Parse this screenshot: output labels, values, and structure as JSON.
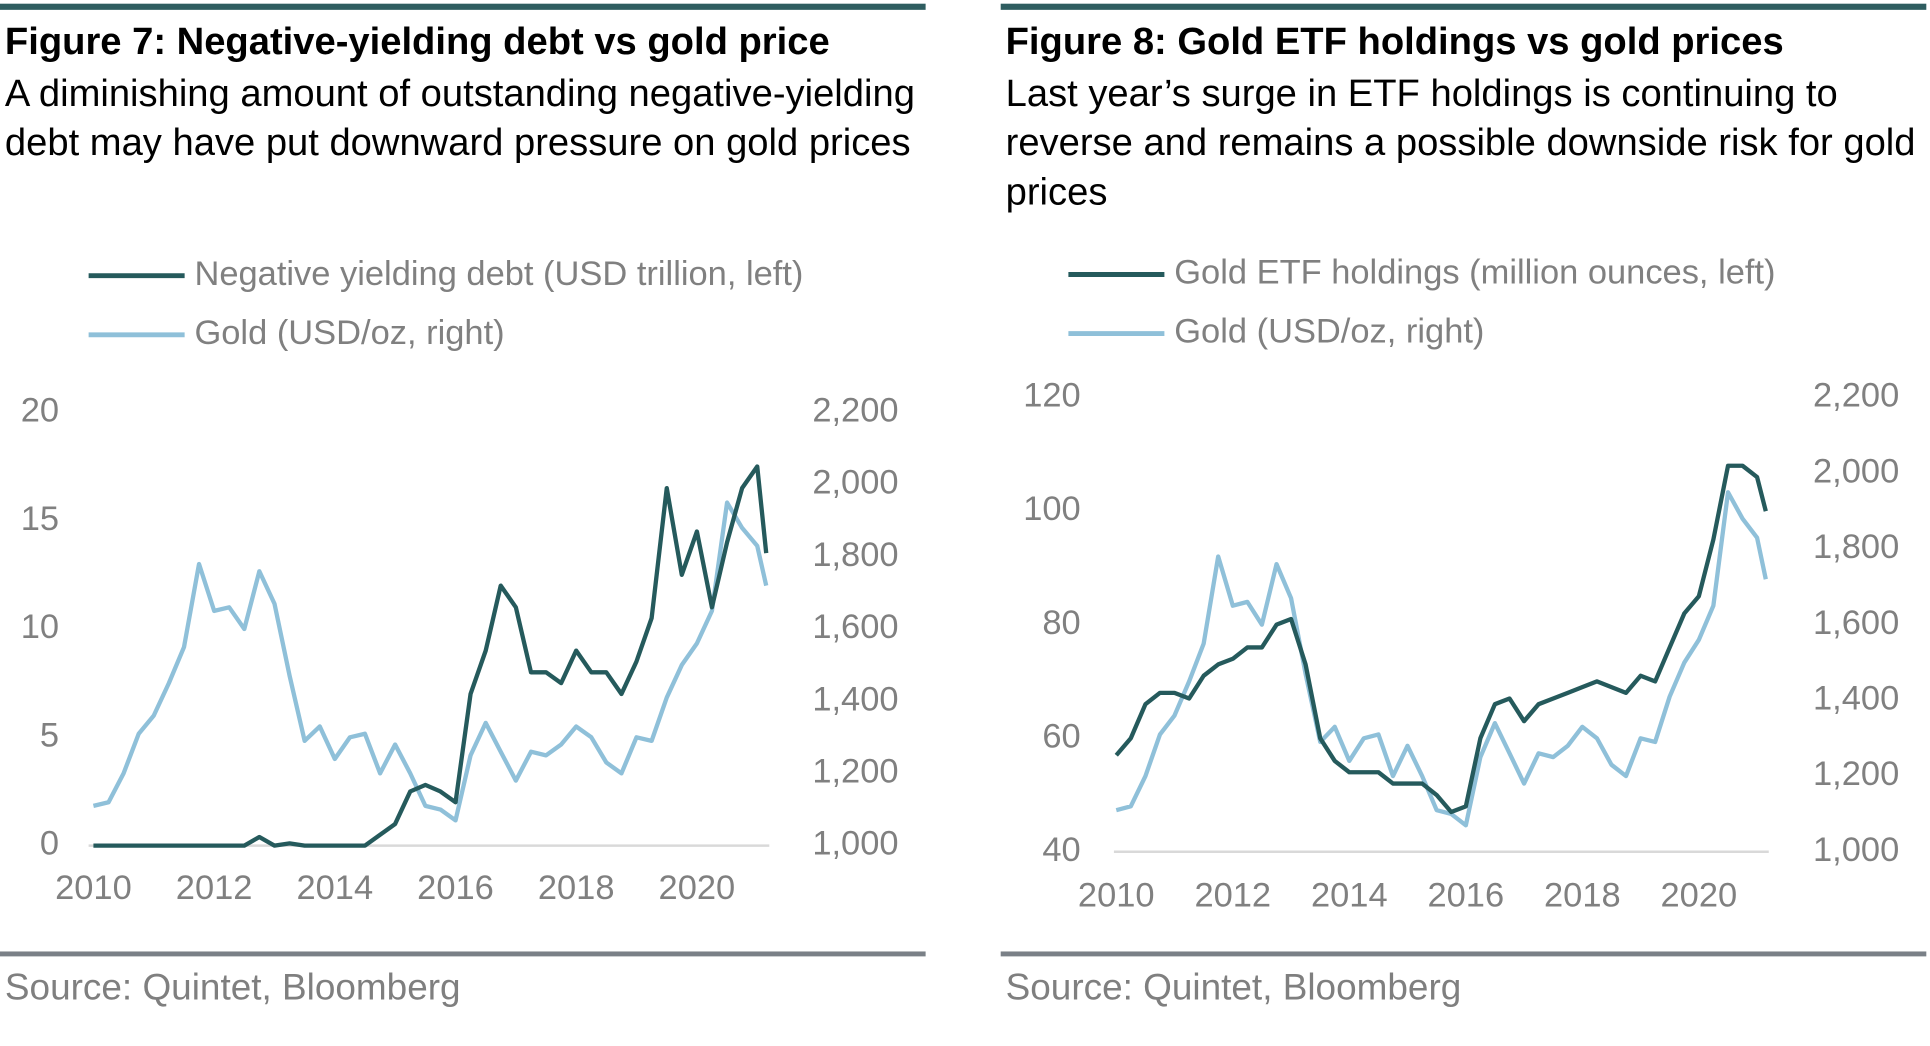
{
  "chart_data": [
    {
      "type": "line",
      "title": "Figure 7: Negative-yielding debt vs gold price",
      "subtitle": "A diminishing amount of outstanding negative-yielding debt may have put downward pressure on gold prices",
      "source": "Source: Quintet, Bloomberg",
      "x": [
        2010.0,
        2010.25,
        2010.5,
        2010.75,
        2011.0,
        2011.25,
        2011.5,
        2011.75,
        2012.0,
        2012.25,
        2012.5,
        2012.75,
        2013.0,
        2013.25,
        2013.5,
        2013.75,
        2014.0,
        2014.25,
        2014.5,
        2014.75,
        2015.0,
        2015.25,
        2015.5,
        2015.75,
        2016.0,
        2016.25,
        2016.5,
        2016.75,
        2017.0,
        2017.25,
        2017.5,
        2017.75,
        2018.0,
        2018.25,
        2018.5,
        2018.75,
        2019.0,
        2019.25,
        2019.5,
        2019.75,
        2020.0,
        2020.25,
        2020.5,
        2020.75,
        2021.0,
        2021.15
      ],
      "series": [
        {
          "name": "Negative yielding debt (USD trillion, left)",
          "color": "#255a5c",
          "axis": "y",
          "values": [
            0,
            0,
            0,
            0,
            0,
            0,
            0,
            0,
            0,
            0,
            0,
            0.4,
            0,
            0.1,
            0,
            0,
            0,
            0,
            0,
            0.5,
            1.0,
            2.5,
            2.8,
            2.5,
            2.0,
            7.0,
            9.0,
            12.0,
            11.0,
            8.0,
            8.0,
            7.5,
            9.0,
            8.0,
            8.0,
            7.0,
            8.5,
            10.5,
            16.5,
            12.5,
            14.5,
            11.0,
            14.0,
            16.5,
            17.5,
            13.5
          ]
        },
        {
          "name": "Gold (USD/oz, right)",
          "color": "#8fc0d9",
          "axis": "y2",
          "values": [
            1110,
            1120,
            1200,
            1310,
            1360,
            1450,
            1550,
            1780,
            1650,
            1660,
            1600,
            1760,
            1670,
            1470,
            1290,
            1330,
            1240,
            1300,
            1310,
            1200,
            1280,
            1200,
            1110,
            1100,
            1070,
            1250,
            1340,
            1260,
            1180,
            1260,
            1250,
            1280,
            1330,
            1300,
            1230,
            1200,
            1300,
            1290,
            1410,
            1500,
            1560,
            1650,
            1950,
            1880,
            1830,
            1720
          ]
        }
      ],
      "xlim": [
        2009.92,
        2021.2
      ],
      "xticks": [
        2010,
        2012,
        2014,
        2016,
        2018,
        2020
      ],
      "ylim": [
        0,
        20
      ],
      "yticks": [
        0,
        5,
        10,
        15,
        20
      ],
      "y2lim": [
        1000,
        2200
      ],
      "y2ticks": [
        {
          "value": 1000,
          "label": "1,000"
        },
        {
          "value": 1200,
          "label": "1,200"
        },
        {
          "value": 1400,
          "label": "1,400"
        },
        {
          "value": 1600,
          "label": "1,600"
        },
        {
          "value": 1800,
          "label": "1,800"
        },
        {
          "value": 2000,
          "label": "2,000"
        },
        {
          "value": 2200,
          "label": "2,200"
        }
      ],
      "legend": "top-left"
    },
    {
      "type": "line",
      "title": "Figure 8: Gold ETF holdings vs gold prices",
      "subtitle": "Last year’s surge in ETF holdings is continuing to reverse and remains a possible downside risk for gold prices",
      "source": "Source: Quintet, Bloomberg",
      "x": [
        2010.0,
        2010.25,
        2010.5,
        2010.75,
        2011.0,
        2011.25,
        2011.5,
        2011.75,
        2012.0,
        2012.25,
        2012.5,
        2012.75,
        2013.0,
        2013.25,
        2013.5,
        2013.75,
        2014.0,
        2014.25,
        2014.5,
        2014.75,
        2015.0,
        2015.25,
        2015.5,
        2015.75,
        2016.0,
        2016.25,
        2016.5,
        2016.75,
        2017.0,
        2017.25,
        2017.5,
        2017.75,
        2018.0,
        2018.25,
        2018.5,
        2018.75,
        2019.0,
        2019.25,
        2019.5,
        2019.75,
        2020.0,
        2020.25,
        2020.5,
        2020.75,
        2021.0,
        2021.15
      ],
      "series": [
        {
          "name": "Gold ETF holdings (million ounces, left)",
          "color": "#255a5c",
          "axis": "y",
          "values": [
            57,
            60,
            66,
            68,
            68,
            67,
            71,
            73,
            74,
            76,
            76,
            80,
            81,
            73,
            60,
            56,
            54,
            54,
            54,
            52,
            52,
            52,
            50,
            47,
            48,
            60,
            66,
            67,
            63,
            66,
            67,
            68,
            69,
            70,
            69,
            68,
            71,
            70,
            76,
            82,
            85,
            95,
            108,
            108,
            106,
            100
          ]
        },
        {
          "name": "Gold (USD/oz, right)",
          "color": "#8fc0d9",
          "axis": "y2",
          "values": [
            1110,
            1120,
            1200,
            1310,
            1360,
            1450,
            1550,
            1780,
            1650,
            1660,
            1600,
            1760,
            1670,
            1470,
            1290,
            1330,
            1240,
            1300,
            1310,
            1200,
            1280,
            1200,
            1110,
            1100,
            1070,
            1250,
            1340,
            1260,
            1180,
            1260,
            1250,
            1280,
            1330,
            1300,
            1230,
            1200,
            1300,
            1290,
            1410,
            1500,
            1560,
            1650,
            1950,
            1880,
            1830,
            1720
          ]
        }
      ],
      "xlim": [
        2009.96,
        2021.2
      ],
      "xticks": [
        2010,
        2012,
        2014,
        2016,
        2018,
        2020
      ],
      "ylim": [
        40,
        120
      ],
      "yticks": [
        40,
        60,
        80,
        100,
        120
      ],
      "y2lim": [
        1000,
        2200
      ],
      "y2ticks": [
        {
          "value": 1000,
          "label": "1,000"
        },
        {
          "value": 1200,
          "label": "1,200"
        },
        {
          "value": 1400,
          "label": "1,400"
        },
        {
          "value": 1600,
          "label": "1,600"
        },
        {
          "value": 1800,
          "label": "1,800"
        },
        {
          "value": 2000,
          "label": "2,000"
        },
        {
          "value": 2200,
          "label": "2,200"
        }
      ],
      "legend": "top-left"
    }
  ]
}
